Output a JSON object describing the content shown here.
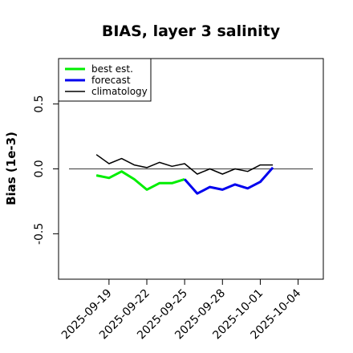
{
  "chart_data": {
    "type": "line",
    "title": "BIAS, layer 3 salinity",
    "xlabel": "",
    "ylabel": "Bias (1e-3)",
    "xlim": [
      "2025-09-15",
      "2025-10-06"
    ],
    "ylim": [
      -0.85,
      0.85
    ],
    "yticks": [
      -0.5,
      0.0,
      0.5
    ],
    "ytick_labels": [
      "-0.5",
      "0.0",
      "0.5"
    ],
    "xticks": [
      "2025-09-19",
      "2025-09-22",
      "2025-09-25",
      "2025-09-28",
      "2025-10-01",
      "2025-10-04"
    ],
    "xtick_labels": [
      "2025-09-19",
      "2025-09-22",
      "2025-09-25",
      "2025-09-28",
      "2025-10-01",
      "2025-10-04"
    ],
    "highlight_tick": "2025-09-25",
    "highlight_color": "#228b22",
    "reference_line_y": 0.0,
    "legend_position": "top-left",
    "series": [
      {
        "name": "best est.",
        "color": "#00ee00",
        "linewidth": 3,
        "x": [
          "2025-09-18",
          "2025-09-19",
          "2025-09-20",
          "2025-09-21",
          "2025-09-22",
          "2025-09-23",
          "2025-09-24",
          "2025-09-25"
        ],
        "y": [
          -0.05,
          -0.07,
          -0.02,
          -0.08,
          -0.16,
          -0.11,
          -0.11,
          -0.08
        ]
      },
      {
        "name": "forecast",
        "color": "#0000ee",
        "linewidth": 3,
        "x": [
          "2025-09-25",
          "2025-09-26",
          "2025-09-27",
          "2025-09-28",
          "2025-09-29",
          "2025-09-30",
          "2025-10-01",
          "2025-10-02"
        ],
        "y": [
          -0.08,
          -0.19,
          -0.14,
          -0.16,
          -0.12,
          -0.15,
          -0.1,
          0.01
        ]
      },
      {
        "name": "climatology",
        "color": "#000000",
        "linewidth": 1.5,
        "x": [
          "2025-09-18",
          "2025-09-19",
          "2025-09-20",
          "2025-09-21",
          "2025-09-22",
          "2025-09-23",
          "2025-09-24",
          "2025-09-25",
          "2025-09-26",
          "2025-09-27",
          "2025-09-28",
          "2025-09-29",
          "2025-09-30",
          "2025-10-01",
          "2025-10-02"
        ],
        "y": [
          0.11,
          0.04,
          0.08,
          0.03,
          0.01,
          0.05,
          0.02,
          0.04,
          -0.04,
          0.0,
          -0.04,
          0.0,
          -0.02,
          0.03,
          0.03
        ]
      }
    ]
  }
}
